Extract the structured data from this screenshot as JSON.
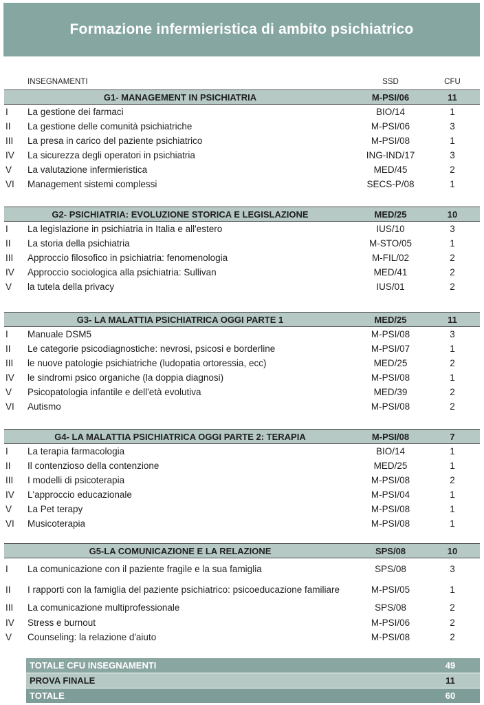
{
  "title": "Formazione infermieristica di ambito psichiatrico",
  "columns": {
    "course": "INSEGNAMENTI",
    "ssd": "SSD",
    "cfu": "CFU"
  },
  "groups": [
    {
      "header": {
        "title": "G1- MANAGEMENT IN PSICHIATRIA",
        "ssd": "M-PSI/06",
        "cfu": "11"
      },
      "rows": [
        {
          "num": "I",
          "name": "La gestione dei farmaci",
          "ssd": "BIO/14",
          "cfu": "1"
        },
        {
          "num": "II",
          "name": "La gestione delle comunità psichiatriche",
          "ssd": "M-PSI/06",
          "cfu": "3"
        },
        {
          "num": "III",
          "name": "La presa in carico del paziente psichiatrico",
          "ssd": "M-PSI/08",
          "cfu": "1"
        },
        {
          "num": "IV",
          "name": "La sicurezza degli operatori in psichiatria",
          "ssd": "ING-IND/17",
          "cfu": "3"
        },
        {
          "num": "V",
          "name": "La valutazione infermieristica",
          "ssd": "MED/45",
          "cfu": "2"
        },
        {
          "num": "VI",
          "name": "Management sistemi complessi",
          "ssd": "SECS-P/08",
          "cfu": "1"
        }
      ]
    },
    {
      "header": {
        "title": "G2- PSICHIATRIA: EVOLUZIONE  STORICA E LEGISLAZIONE",
        "ssd": "MED/25",
        "cfu": "10"
      },
      "rows": [
        {
          "num": "I",
          "name": "La legislazione in psichiatria in Italia e all'estero",
          "ssd": "IUS/10",
          "cfu": "3"
        },
        {
          "num": "II",
          "name": "La storia della psichiatria",
          "ssd": "M-STO/05",
          "cfu": "1"
        },
        {
          "num": "III",
          "name": "Approccio filosofico in psichiatria: fenomenologia",
          "ssd": "M-FIL/02",
          "cfu": "2"
        },
        {
          "num": "IV",
          "name": "Approccio sociologica alla psichiatria: Sullivan",
          "ssd": "MED/41",
          "cfu": "2"
        },
        {
          "num": "V",
          "name": "la tutela della privacy",
          "ssd": "IUS/01",
          "cfu": "2"
        }
      ]
    },
    {
      "header": {
        "title": "G3- LA MALATTIA PSICHIATRICA OGGI PARTE 1",
        "ssd": "MED/25",
        "cfu": "11"
      },
      "rows": [
        {
          "num": "I",
          "name": "Manuale DSM5",
          "ssd": "M-PSI/08",
          "cfu": "3"
        },
        {
          "num": "II",
          "name": "Le categorie psicodiagnostiche: nevrosi, psicosi e borderline",
          "ssd": "M-PSI/07",
          "cfu": "1"
        },
        {
          "num": "III",
          "name": "le nuove patologie psichiatriche (ludopatia ortoressia, ecc)",
          "ssd": "MED/25",
          "cfu": "2"
        },
        {
          "num": "IV",
          "name": "le sindromi psico organiche (la doppia diagnosi)",
          "ssd": "M-PSI/08",
          "cfu": "1"
        },
        {
          "num": "V",
          "name": "Psicopatologia infantile e dell'età evolutiva",
          "ssd": "MED/39",
          "cfu": "2"
        },
        {
          "num": "VI",
          "name": "Autismo",
          "ssd": "M-PSI/08",
          "cfu": "2"
        }
      ]
    },
    {
      "header": {
        "title": "G4- LA MALATTIA PSICHIATRICA OGGI PARTE 2: TERAPIA",
        "ssd": "M-PSI/08",
        "cfu": "7"
      },
      "rows": [
        {
          "num": "I",
          "name": "La terapia farmacologia",
          "ssd": "BIO/14",
          "cfu": "1"
        },
        {
          "num": "II",
          "name": "Il contenzioso della contenzione",
          "ssd": "MED/25",
          "cfu": "1"
        },
        {
          "num": "III",
          "name": "I modelli di psicoterapia",
          "ssd": "M-PSI/08",
          "cfu": "2"
        },
        {
          "num": "IV",
          "name": "L'approccio educazionale",
          "ssd": "M-PSI/04",
          "cfu": "1"
        },
        {
          "num": "V",
          "name": "La Pet terapy",
          "ssd": "M-PSI/08",
          "cfu": "1"
        },
        {
          "num": "VI",
          "name": "Musicoterapia",
          "ssd": "M-PSI/08",
          "cfu": "1"
        }
      ]
    },
    {
      "header": {
        "title": "G5-LA COMUNICAZIONE E LA RELAZIONE",
        "ssd": "SPS/08",
        "cfu": "10"
      },
      "rows": [
        {
          "num": "I",
          "name": "La comunicazione con il paziente fragile e la sua famiglia",
          "ssd": "SPS/08",
          "cfu": "3"
        },
        {
          "num": "II",
          "name": "I rapporti con la famiglia del paziente psichiatrico: psicoeducazione familiare",
          "ssd": "M-PSI/05",
          "cfu": "1"
        },
        {
          "num": "III",
          "name": "La comunicazione multiprofessionale",
          "ssd": "SPS/08",
          "cfu": "2"
        },
        {
          "num": "IV",
          "name": "Stress e  burnout",
          "ssd": "M-PSI/06",
          "cfu": "2"
        },
        {
          "num": "V",
          "name": "Counseling: la relazione d'aiuto",
          "ssd": "M-PSI/08",
          "cfu": "2"
        }
      ]
    }
  ],
  "totals": [
    {
      "label": "TOTALE CFU INSEGNAMENTI",
      "value": "49"
    },
    {
      "label": "PROVA FINALE",
      "value": "11"
    },
    {
      "label": "TOTALE",
      "value": "60"
    }
  ],
  "colors": {
    "banner_teal": "#86a7a1",
    "group_header_teal": "#b6c9c5",
    "total_row_mid_teal": "#8aa6a1",
    "total_row_light_teal": "#b6c9c5",
    "total_row_dark_teal": "#7f9d98",
    "header_border": "#4d4d4d",
    "text": "#1f1f1f"
  }
}
